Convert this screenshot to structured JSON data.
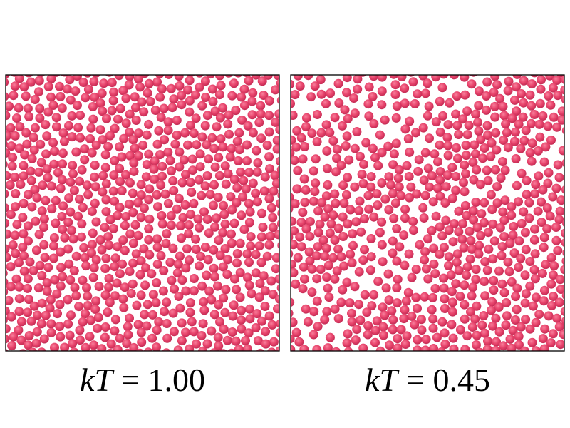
{
  "panels": [
    {
      "symbol": "kT",
      "relation": "= 1.00"
    },
    {
      "symbol": "kT",
      "relation": "= 0.45"
    }
  ]
}
